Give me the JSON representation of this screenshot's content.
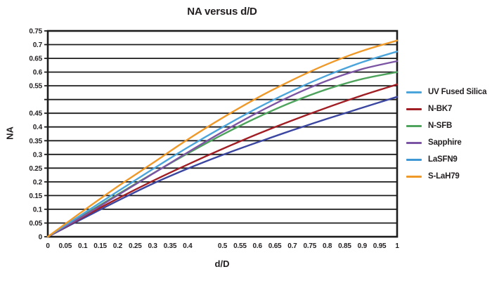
{
  "chart_data": {
    "type": "line",
    "title": "NA versus d/D",
    "xlabel": "d/D",
    "ylabel": "NA",
    "xlim": [
      0,
      1
    ],
    "ylim": [
      0,
      0.75
    ],
    "grid": "horizontal-only",
    "legend_position": "right",
    "axis_color": "#1c1c1c",
    "text_color": "#231f20",
    "x_ticks": [
      {
        "v": 0,
        "t": "0"
      },
      {
        "v": 0.05,
        "t": "0.05"
      },
      {
        "v": 0.1,
        "t": "0.1"
      },
      {
        "v": 0.15,
        "t": "0.15"
      },
      {
        "v": 0.2,
        "t": "0.2"
      },
      {
        "v": 0.25,
        "t": "0.25"
      },
      {
        "v": 0.3,
        "t": "0.3"
      },
      {
        "v": 0.35,
        "t": "0.35"
      },
      {
        "v": 0.4,
        "t": "0.4"
      },
      {
        "v": 0.45,
        "t": ""
      },
      {
        "v": 0.5,
        "t": "0.5"
      },
      {
        "v": 0.55,
        "t": "0.55"
      },
      {
        "v": 0.6,
        "t": "0.6"
      },
      {
        "v": 0.65,
        "t": "0.65"
      },
      {
        "v": 0.7,
        "t": "0.7"
      },
      {
        "v": 0.75,
        "t": "0.75"
      },
      {
        "v": 0.8,
        "t": "0.8"
      },
      {
        "v": 0.85,
        "t": "0.85"
      },
      {
        "v": 0.9,
        "t": "0.9"
      },
      {
        "v": 0.95,
        "t": "0.95"
      },
      {
        "v": 1,
        "t": "1"
      }
    ],
    "y_ticks": [
      {
        "v": 0,
        "t": "0"
      },
      {
        "v": 0.05,
        "t": "0.05"
      },
      {
        "v": 0.1,
        "t": "0.1"
      },
      {
        "v": 0.15,
        "t": "0.15"
      },
      {
        "v": 0.2,
        "t": "0.2"
      },
      {
        "v": 0.25,
        "t": "0.25"
      },
      {
        "v": 0.3,
        "t": "0.3"
      },
      {
        "v": 0.35,
        "t": "0.35"
      },
      {
        "v": 0.4,
        "t": "0.4"
      },
      {
        "v": 0.45,
        "t": "0.45"
      },
      {
        "v": 0.5,
        "t": ""
      },
      {
        "v": 0.55,
        "t": "0.55"
      },
      {
        "v": 0.6,
        "t": "0.6"
      },
      {
        "v": 0.65,
        "t": "0.65"
      },
      {
        "v": 0.7,
        "t": "0.7"
      },
      {
        "v": 0.75,
        "t": "0.75"
      }
    ],
    "x": [
      0,
      0.1,
      0.2,
      0.3,
      0.4,
      0.5,
      0.6,
      0.7,
      0.8,
      0.9,
      1.0
    ],
    "series": [
      {
        "name": "UV Fused Silica",
        "legend_color": "#4BA5DB",
        "line_color": "#3A46A0",
        "values": [
          0,
          0.066,
          0.131,
          0.193,
          0.248,
          0.298,
          0.344,
          0.388,
          0.43,
          0.47,
          0.51
        ]
      },
      {
        "name": "N-BK7",
        "legend_color": "#A01E24",
        "line_color": "#A01E24",
        "values": [
          0,
          0.071,
          0.139,
          0.203,
          0.263,
          0.32,
          0.374,
          0.424,
          0.471,
          0.515,
          0.555
        ]
      },
      {
        "name": "N-SFB",
        "legend_color": "#4EA35D",
        "line_color": "#4EA35D",
        "values": [
          0,
          0.077,
          0.154,
          0.23,
          0.303,
          0.372,
          0.435,
          0.491,
          0.538,
          0.575,
          0.6
        ]
      },
      {
        "name": "Sapphire",
        "legend_color": "#7B55A4",
        "line_color": "#7B55A4",
        "values": [
          0,
          0.074,
          0.151,
          0.229,
          0.307,
          0.382,
          0.452,
          0.515,
          0.569,
          0.611,
          0.64
        ]
      },
      {
        "name": "LaSFN9",
        "legend_color": "#3F97D4",
        "line_color": "#4BA5DB",
        "values": [
          0,
          0.083,
          0.165,
          0.246,
          0.325,
          0.399,
          0.469,
          0.532,
          0.588,
          0.636,
          0.675
        ]
      },
      {
        "name": "S-LaH79",
        "legend_color": "#EF9929",
        "line_color": "#EF9929",
        "values": [
          0,
          0.093,
          0.183,
          0.268,
          0.354,
          0.433,
          0.506,
          0.571,
          0.629,
          0.677,
          0.715
        ]
      }
    ]
  }
}
